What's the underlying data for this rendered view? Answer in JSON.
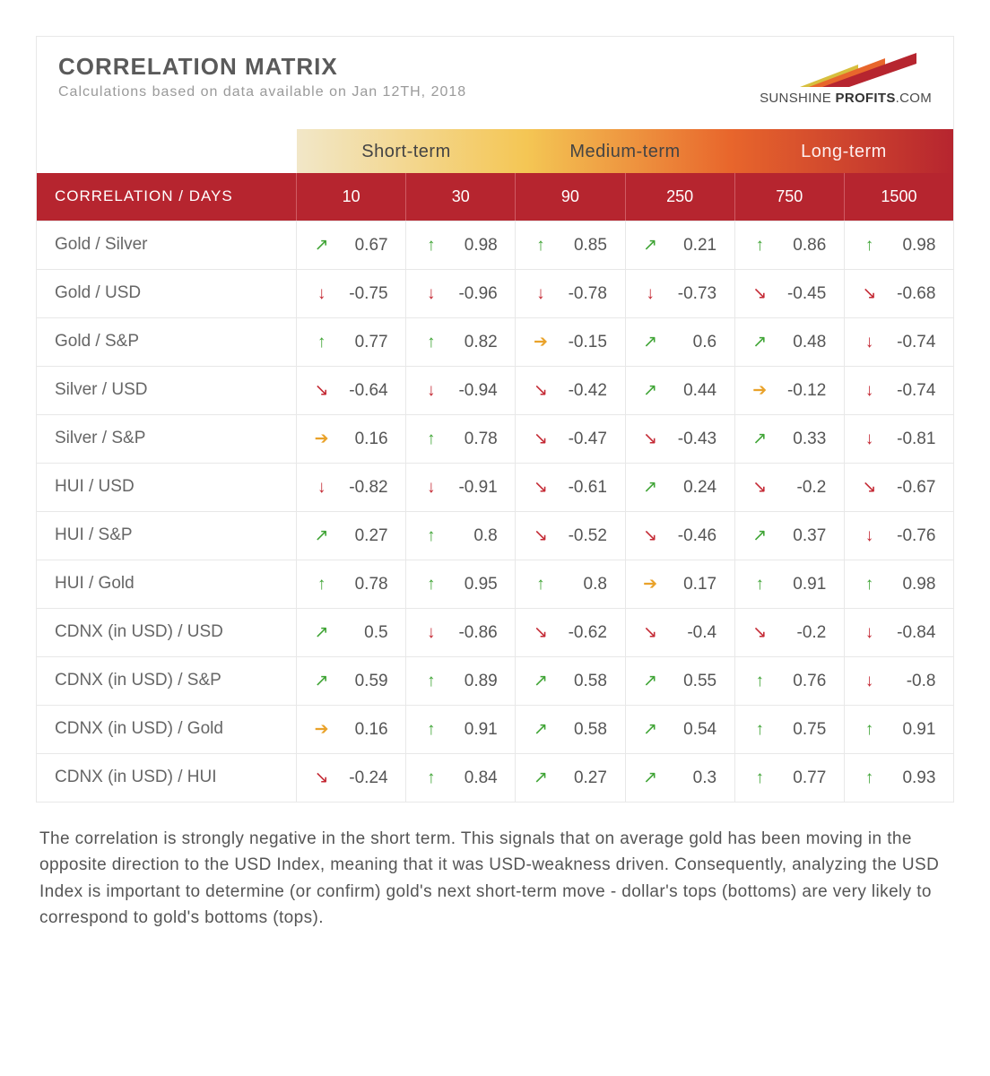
{
  "header": {
    "title": "CORRELATION MATRIX",
    "subtitle": "Calculations based on data available on Jan 12TH, 2018",
    "logo_line1a": "SUNSHINE ",
    "logo_line1b": "PROFITS",
    "logo_line1c": ".COM"
  },
  "terms": {
    "short": "Short-term",
    "medium": "Medium-term",
    "long": "Long-term"
  },
  "columns": {
    "label": "CORRELATION / DAYS",
    "days": [
      "10",
      "30",
      "90",
      "250",
      "750",
      "1500"
    ]
  },
  "arrows": {
    "up": "↑",
    "upd": "↗",
    "down": "↓",
    "downd": "↘",
    "flat": "➔"
  },
  "style": {
    "colors": {
      "bg": "#ffffff",
      "border": "#e8e8e8",
      "text": "#555555",
      "headerRed": "#b6252f",
      "headerRedBorder": "#cf5b63",
      "arrowUp": "#3fa435",
      "arrowDown": "#c42934",
      "arrowFlat": "#e9a22a",
      "termGradient": [
        "#f2e7c8",
        "#f4c654",
        "#e8662c",
        "#b6252f"
      ]
    },
    "font": {
      "family": "Verdana, Geneva, sans-serif",
      "titleSize": 26,
      "cellSize": 19
    },
    "columnCount": 6,
    "labelColWidth": 290,
    "termSplit": [
      2,
      2,
      2
    ]
  },
  "rows": [
    {
      "pair": "Gold / Silver",
      "cells": [
        {
          "dir": "upd",
          "val": "0.67"
        },
        {
          "dir": "up",
          "val": "0.98"
        },
        {
          "dir": "up",
          "val": "0.85"
        },
        {
          "dir": "upd",
          "val": "0.21"
        },
        {
          "dir": "up",
          "val": "0.86"
        },
        {
          "dir": "up",
          "val": "0.98"
        }
      ]
    },
    {
      "pair": "Gold / USD",
      "cells": [
        {
          "dir": "down",
          "val": "-0.75"
        },
        {
          "dir": "down",
          "val": "-0.96"
        },
        {
          "dir": "down",
          "val": "-0.78"
        },
        {
          "dir": "down",
          "val": "-0.73"
        },
        {
          "dir": "downd",
          "val": "-0.45"
        },
        {
          "dir": "downd",
          "val": "-0.68"
        }
      ]
    },
    {
      "pair": "Gold / S&P",
      "cells": [
        {
          "dir": "up",
          "val": "0.77"
        },
        {
          "dir": "up",
          "val": "0.82"
        },
        {
          "dir": "flat",
          "val": "-0.15"
        },
        {
          "dir": "upd",
          "val": "0.6"
        },
        {
          "dir": "upd",
          "val": "0.48"
        },
        {
          "dir": "down",
          "val": "-0.74"
        }
      ]
    },
    {
      "pair": "Silver / USD",
      "cells": [
        {
          "dir": "downd",
          "val": "-0.64"
        },
        {
          "dir": "down",
          "val": "-0.94"
        },
        {
          "dir": "downd",
          "val": "-0.42"
        },
        {
          "dir": "upd",
          "val": "0.44"
        },
        {
          "dir": "flat",
          "val": "-0.12"
        },
        {
          "dir": "down",
          "val": "-0.74"
        }
      ]
    },
    {
      "pair": "Silver / S&P",
      "cells": [
        {
          "dir": "flat",
          "val": "0.16"
        },
        {
          "dir": "up",
          "val": "0.78"
        },
        {
          "dir": "downd",
          "val": "-0.47"
        },
        {
          "dir": "downd",
          "val": "-0.43"
        },
        {
          "dir": "upd",
          "val": "0.33"
        },
        {
          "dir": "down",
          "val": "-0.81"
        }
      ]
    },
    {
      "pair": "HUI / USD",
      "cells": [
        {
          "dir": "down",
          "val": "-0.82"
        },
        {
          "dir": "down",
          "val": "-0.91"
        },
        {
          "dir": "downd",
          "val": "-0.61"
        },
        {
          "dir": "upd",
          "val": "0.24"
        },
        {
          "dir": "downd",
          "val": "-0.2"
        },
        {
          "dir": "downd",
          "val": "-0.67"
        }
      ]
    },
    {
      "pair": "HUI / S&P",
      "cells": [
        {
          "dir": "upd",
          "val": "0.27"
        },
        {
          "dir": "up",
          "val": "0.8"
        },
        {
          "dir": "downd",
          "val": "-0.52"
        },
        {
          "dir": "downd",
          "val": "-0.46"
        },
        {
          "dir": "upd",
          "val": "0.37"
        },
        {
          "dir": "down",
          "val": "-0.76"
        }
      ]
    },
    {
      "pair": "HUI / Gold",
      "cells": [
        {
          "dir": "up",
          "val": "0.78"
        },
        {
          "dir": "up",
          "val": "0.95"
        },
        {
          "dir": "up",
          "val": "0.8"
        },
        {
          "dir": "flat",
          "val": "0.17"
        },
        {
          "dir": "up",
          "val": "0.91"
        },
        {
          "dir": "up",
          "val": "0.98"
        }
      ]
    },
    {
      "pair": "CDNX (in USD) / USD",
      "cells": [
        {
          "dir": "upd",
          "val": "0.5"
        },
        {
          "dir": "down",
          "val": "-0.86"
        },
        {
          "dir": "downd",
          "val": "-0.62"
        },
        {
          "dir": "downd",
          "val": "-0.4"
        },
        {
          "dir": "downd",
          "val": "-0.2"
        },
        {
          "dir": "down",
          "val": "-0.84"
        }
      ]
    },
    {
      "pair": "CDNX (in USD) / S&P",
      "cells": [
        {
          "dir": "upd",
          "val": "0.59"
        },
        {
          "dir": "up",
          "val": "0.89"
        },
        {
          "dir": "upd",
          "val": "0.58"
        },
        {
          "dir": "upd",
          "val": "0.55"
        },
        {
          "dir": "up",
          "val": "0.76"
        },
        {
          "dir": "down",
          "val": "-0.8"
        }
      ]
    },
    {
      "pair": "CDNX (in USD) / Gold",
      "cells": [
        {
          "dir": "flat",
          "val": "0.16"
        },
        {
          "dir": "up",
          "val": "0.91"
        },
        {
          "dir": "upd",
          "val": "0.58"
        },
        {
          "dir": "upd",
          "val": "0.54"
        },
        {
          "dir": "up",
          "val": "0.75"
        },
        {
          "dir": "up",
          "val": "0.91"
        }
      ]
    },
    {
      "pair": "CDNX (in USD) / HUI",
      "cells": [
        {
          "dir": "downd",
          "val": "-0.24"
        },
        {
          "dir": "up",
          "val": "0.84"
        },
        {
          "dir": "upd",
          "val": "0.27"
        },
        {
          "dir": "upd",
          "val": "0.3"
        },
        {
          "dir": "up",
          "val": "0.77"
        },
        {
          "dir": "up",
          "val": "0.93"
        }
      ]
    }
  ],
  "footnote": "The correlation is strongly negative in the short term. This signals that on average gold has been moving in the opposite direction to the USD Index, meaning that it was USD-weakness driven. Consequently, analyzing the USD Index is important to determine (or confirm) gold's next short-term move - dollar's tops (bottoms) are very likely to correspond to gold's bottoms (tops)."
}
